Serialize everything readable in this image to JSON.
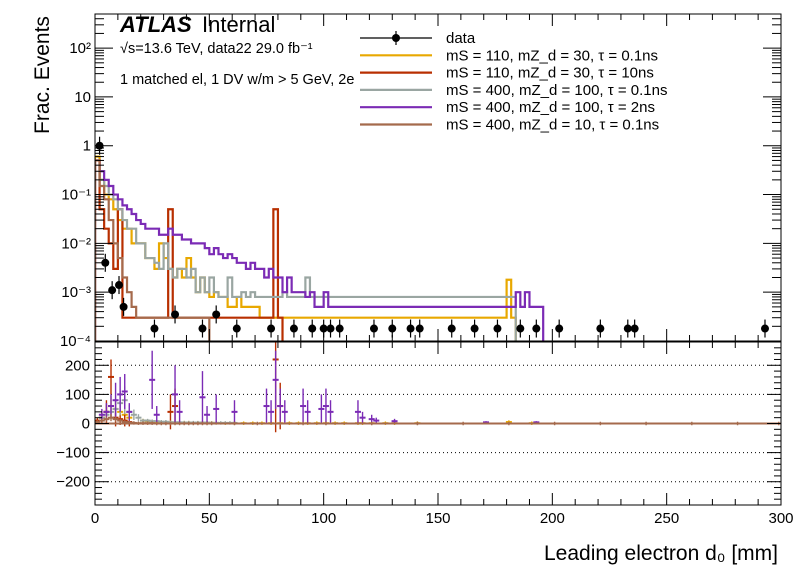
{
  "chart_data": [
    {
      "type": "line",
      "panel": "upper",
      "title": "",
      "atlas_label": "ATLAS",
      "atlas_status": "Internal",
      "energy_label": "√s=13.6 TeV, data22 29.0 fb⁻¹",
      "selection_label": "1 matched el, 1 DV w/m > 5 GeV, 2e",
      "ylabel": "Frac. Events",
      "yscale": "log",
      "ylim": [
        0.0001,
        500
      ],
      "xlim": [
        0,
        300
      ],
      "y_tick_labels": [
        "10²",
        "10",
        "1",
        "10⁻¹",
        "10⁻²",
        "10⁻³",
        "10⁻⁴"
      ],
      "legend_position": "top-right",
      "series": [
        {
          "name": "data",
          "style": "markers",
          "color": "#000000",
          "x": [
            2,
            4.5,
            7.5,
            10.5,
            12.5,
            26,
            35,
            47,
            53,
            62,
            77,
            87,
            95,
            100,
            103,
            107,
            122,
            130,
            138,
            142,
            156,
            166,
            176,
            186,
            193,
            203,
            221,
            233,
            236,
            293
          ],
          "y": [
            1.0,
            0.004,
            0.0011,
            0.0014,
            0.0005,
            0.00018,
            0.00035,
            0.00018,
            0.00035,
            0.00018,
            0.00018,
            0.00018,
            0.00018,
            0.00018,
            0.00018,
            0.00018,
            0.00018,
            0.00018,
            0.00018,
            0.00018,
            0.00018,
            0.00018,
            0.00018,
            0.00018,
            0.00018,
            0.00018,
            0.00018,
            0.00018,
            0.00018,
            0.00018
          ]
        },
        {
          "name": "mS = 110, mZ_d = 30, τ = 0.1ns",
          "style": "step",
          "color": "#e8a800",
          "bin_width": 2,
          "x_start": 0,
          "values": [
            0.6,
            0.2,
            0.1,
            0.08,
            0.05,
            0.03,
            0.02,
            0.02,
            0.01,
            0.01,
            0.01,
            0.005,
            0.005,
            0.003,
            0.01,
            0.005,
            0.003,
            0.002,
            0.003,
            0.002,
            0.005,
            0.002,
            0.001,
            0.002,
            0.001,
            0.0008,
            0.001,
            0.0008,
            0.0008,
            0.0005,
            0.0005,
            0.0008,
            0.0005,
            0.0005,
            0.0005,
            0.0005,
            0.0003,
            0.0003,
            0.0003,
            0.0003,
            0.0003,
            0.0003,
            0.0003,
            0.0003,
            0.0003,
            0.0003,
            0.0003,
            0.0003,
            0.0003,
            0.0003,
            0.0003,
            0.0003,
            0.0003,
            0.0003,
            0.0003,
            0.0003,
            0.0003,
            0.0003,
            0.0003,
            0.0003,
            0.0003,
            0.0003,
            0.0003,
            0.0003,
            0.0003,
            0.0003,
            0.0003,
            0.0003,
            0.0003,
            0.0003,
            0.0003,
            0.0003,
            0.0003,
            0.0003,
            0.0003,
            0.0003,
            0.0003,
            0.0003,
            0.0003,
            0.0003,
            0.0003,
            0.0003,
            0.0003,
            0.0003,
            0.0003,
            0.0003,
            0.0003,
            0.0003,
            0.0003,
            0.0003,
            0.0018,
            0.0003
          ]
        },
        {
          "name": "mS = 110, mZ_d = 30, τ = 10ns",
          "style": "step",
          "color": "#b82f00",
          "bin_width": 2,
          "x_start": 0,
          "values": [
            0.5,
            0.05,
            0.02,
            0.01,
            0.003,
            0.05,
            0.0003,
            0.0003,
            0.0003,
            0.0003,
            0.0003,
            0.0003,
            0.0003,
            0.0003,
            0.0003,
            0.0003,
            0.05,
            0.0003,
            0.0003,
            0.0003,
            0.0003,
            0.0003,
            0.0003,
            0.0003,
            0.0003,
            0.0003,
            0.0003,
            0.0003,
            0.0003,
            0.0003,
            0.0003,
            0.0003,
            0.0003,
            0.0003,
            0.0003,
            0.0003,
            0.0003,
            0.0003,
            0.0003,
            0.05,
            0.0003
          ]
        },
        {
          "name": "mS = 400, mZ_d = 100, τ = 0.1ns",
          "style": "step",
          "color": "#9aa6a2",
          "bin_width": 2,
          "x_start": 0,
          "values": [
            0.5,
            0.2,
            0.15,
            0.1,
            0.08,
            0.05,
            0.03,
            0.02,
            0.02,
            0.01,
            0.01,
            0.005,
            0.005,
            0.004,
            0.003,
            0.01,
            0.003,
            0.002,
            0.003,
            0.003,
            0.002,
            0.003,
            0.001,
            0.002,
            0.001,
            0.002,
            0.001,
            0.0008,
            0.0008,
            0.002,
            0.0008,
            0.0008,
            0.001,
            0.0008,
            0.001,
            0.0008,
            0.0008,
            0.0008,
            0.0008,
            0.0008,
            0.0008,
            0.001,
            0.0008,
            0.0008,
            0.0008,
            0.0008,
            0.002,
            0.0008,
            0.0008,
            0.0008,
            0.0008,
            0.0008,
            0.0008,
            0.0008,
            0.0008,
            0.0008,
            0.0008,
            0.0008,
            0.0008,
            0.0008,
            0.0008,
            0.0008,
            0.0008,
            0.0008,
            0.0008,
            0.0008,
            0.0008,
            0.0008,
            0.0008,
            0.0008,
            0.0008,
            0.0008,
            0.0008,
            0.0008,
            0.0008,
            0.0008,
            0.0008,
            0.0008,
            0.0008,
            0.0008,
            0.0008,
            0.0008,
            0.0008,
            0.0008,
            0.0008,
            0.0008,
            0.0008,
            0.0008,
            0.0008,
            0.0008,
            0.0008,
            0.0008
          ]
        },
        {
          "name": "mS = 400, mZ_d = 100, τ = 2ns",
          "style": "step",
          "color": "#7b2bb5",
          "bin_width": 2,
          "x_start": 0,
          "values": [
            0.5,
            0.3,
            0.2,
            0.15,
            0.1,
            0.08,
            0.06,
            0.05,
            0.04,
            0.03,
            0.025,
            0.02,
            0.02,
            0.02,
            0.015,
            0.015,
            0.02,
            0.015,
            0.015,
            0.012,
            0.012,
            0.01,
            0.01,
            0.01,
            0.008,
            0.006,
            0.008,
            0.006,
            0.005,
            0.006,
            0.005,
            0.004,
            0.004,
            0.003,
            0.004,
            0.003,
            0.003,
            0.002,
            0.003,
            0.002,
            0.002,
            0.001,
            0.002,
            0.001,
            0.001,
            0.001,
            0.0008,
            0.001,
            0.0005,
            0.0005,
            0.001,
            0.0005,
            0.0005,
            0.0005,
            0.0005,
            0.0005,
            0.0005,
            0.0005,
            0.0005,
            0.0005,
            0.0005,
            0.0005,
            0.0005,
            0.0005,
            0.0005,
            0.0005,
            0.0005,
            0.0005,
            0.0005,
            0.0005,
            0.0005,
            0.0005,
            0.0005,
            0.0005,
            0.0005,
            0.0005,
            0.0005,
            0.0005,
            0.0005,
            0.0005,
            0.0005,
            0.0005,
            0.0005,
            0.0005,
            0.0005,
            0.0005,
            0.0005,
            0.0005,
            0.0005,
            0.0005,
            0.0005,
            0.0005,
            0.001,
            0.0005,
            0.001,
            0.0005,
            0.0005,
            0.0005
          ]
        },
        {
          "name": "mS = 400, mZ_d = 10, τ = 0.1ns",
          "style": "step",
          "color": "#a56a4c",
          "bin_width": 2,
          "x_start": 0,
          "values": [
            0.5,
            0.15,
            0.08,
            0.03,
            0.01,
            0.005,
            0.002,
            0.001,
            0.0005,
            0.0003,
            0.0003,
            0.0003,
            0.0003,
            0.0003,
            0.0003,
            0.0003,
            0.0003,
            0.0003,
            0.0003,
            0.0003,
            0.0003,
            0.0003,
            0.0003,
            0.0003,
            0.0003
          ]
        }
      ]
    },
    {
      "type": "line",
      "panel": "lower",
      "title": "",
      "xlabel": "Leading electron d₀ [mm]",
      "ylabel": "",
      "xlim": [
        0,
        300
      ],
      "ylim": [
        -280,
        280
      ],
      "x_tick_labels": [
        "0",
        "50",
        "100",
        "150",
        "200",
        "250",
        "300"
      ],
      "y_tick_labels": [
        "200",
        "100",
        "0",
        "−100",
        "−200"
      ],
      "grid": "dotted horizontal at ±100, ±200",
      "series": [
        {
          "color": "#e8a800",
          "x": [
            3,
            5,
            7,
            9,
            11,
            13,
            15,
            21,
            23,
            25,
            27,
            29,
            33,
            35,
            39,
            41,
            45,
            47,
            51,
            53,
            57,
            61,
            65,
            69,
            73,
            77,
            81,
            85,
            89,
            93,
            97,
            101,
            105,
            109,
            115,
            117,
            121,
            127,
            131,
            141,
            181,
            191
          ],
          "y": [
            20,
            40,
            60,
            50,
            40,
            30,
            20,
            10,
            8,
            6,
            5,
            5,
            4,
            3,
            3,
            3,
            2,
            2,
            2,
            2,
            1,
            1,
            1,
            1,
            1,
            1,
            1,
            1,
            1,
            1,
            1,
            1,
            1,
            1,
            1,
            1,
            1,
            1,
            1,
            1,
            5,
            1
          ]
        },
        {
          "color": "#b82f00",
          "x": [
            1,
            3,
            5,
            7,
            9,
            11,
            13,
            15,
            33,
            35,
            79,
            81
          ],
          "y": [
            10,
            20,
            40,
            160,
            20,
            15,
            10,
            5,
            40,
            60,
            220,
            60
          ],
          "err": [
            10,
            20,
            40,
            60,
            30,
            20,
            20,
            15,
            60,
            60,
            250,
            80
          ]
        },
        {
          "color": "#9aa6a2",
          "x": [
            3,
            5,
            7,
            9,
            11,
            13,
            15,
            17,
            19,
            21,
            23,
            25,
            27,
            29,
            31,
            33,
            35,
            37,
            39,
            41,
            43,
            45,
            47,
            49,
            51,
            53,
            55,
            57,
            59,
            61
          ],
          "y": [
            20,
            30,
            40,
            50,
            70,
            80,
            40,
            30,
            20,
            10,
            10,
            8,
            8,
            6,
            6,
            4,
            4,
            4,
            3,
            3,
            3,
            3,
            3,
            3,
            2,
            2,
            2,
            2,
            2,
            2
          ]
        },
        {
          "color": "#7b2bb5",
          "x": [
            3,
            5,
            7,
            9,
            11,
            13,
            15,
            25,
            27,
            35,
            37,
            47,
            49,
            53,
            61,
            75,
            77,
            79,
            81,
            83,
            91,
            93,
            99,
            101,
            103,
            115,
            117,
            121,
            123,
            131,
            171,
            193
          ],
          "y": [
            30,
            40,
            60,
            80,
            100,
            110,
            40,
            150,
            30,
            100,
            40,
            90,
            30,
            50,
            40,
            60,
            40,
            150,
            60,
            40,
            60,
            40,
            50,
            60,
            40,
            40,
            20,
            15,
            10,
            8,
            4,
            4
          ],
          "err": [
            20,
            30,
            40,
            60,
            60,
            60,
            30,
            100,
            30,
            100,
            40,
            90,
            30,
            50,
            40,
            60,
            40,
            100,
            60,
            40,
            60,
            40,
            50,
            60,
            40,
            40,
            20,
            15,
            10,
            8,
            4,
            4
          ]
        },
        {
          "color": "#a56a4c",
          "x": [
            1,
            3,
            5,
            7,
            9,
            11,
            13,
            15,
            17,
            19,
            21,
            23,
            25,
            27,
            29,
            31,
            33,
            35,
            37,
            39,
            41,
            43,
            45,
            47,
            49,
            51,
            61,
            71,
            81,
            91,
            101,
            121,
            141,
            161,
            181,
            201,
            221,
            241,
            261,
            281,
            299
          ],
          "y": [
            5,
            10,
            15,
            20,
            15,
            10,
            5,
            3,
            2,
            1,
            1,
            1,
            1,
            0,
            0,
            0,
            0,
            0,
            0,
            0,
            0,
            0,
            0,
            0,
            0,
            0,
            0,
            0,
            0,
            0,
            0,
            0,
            0,
            0,
            0,
            0,
            0,
            0,
            0,
            0,
            0
          ]
        }
      ]
    }
  ]
}
